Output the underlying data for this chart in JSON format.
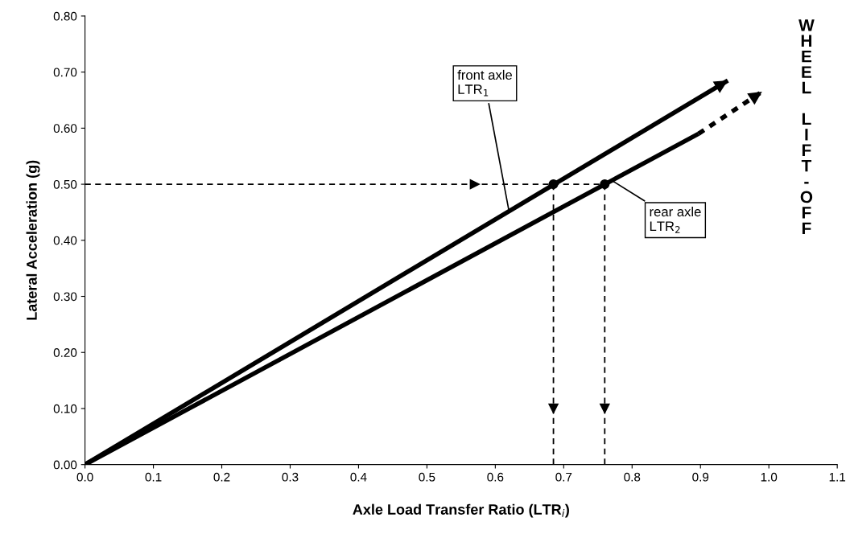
{
  "chart_data": {
    "type": "line",
    "xlabel": "Axle Load Transfer Ratio (LTR$_{i}$)",
    "ylabel": "Lateral Acceleration (g)",
    "series": [
      {
        "color": "#000000",
        "line_style": "solid",
        "x": [
          0,
          0.94
        ],
        "values": [
          0,
          0.685
        ]
      },
      {
        "color": "#000000",
        "line_style": "solid",
        "x": [
          0,
          0.897
        ],
        "values": [
          0,
          0.59
        ]
      },
      {
        "color": "#000000",
        "line_style": "dotted",
        "x": [
          0.897,
          0.99
        ],
        "values": [
          0.59,
          0.665
        ]
      },
      {
        "color": "#000000",
        "line_style": "dashed",
        "x": [
          0,
          0.57,
          0.76
        ],
        "values": [
          0.5,
          0.5,
          0.5
        ]
      },
      {
        "color": "#000000",
        "line_style": "dashed",
        "x": [
          0.685,
          0.685,
          0.685
        ],
        "values": [
          0.5,
          0.1,
          0
        ]
      },
      {
        "color": "#000000",
        "line_style": "dashed",
        "x": [
          0.76,
          0.76,
          0.76
        ],
        "values": [
          0.5,
          0.1,
          0
        ]
      },
      {
        "type": "scatter",
        "color": "#000000",
        "marker": "circle",
        "x": [
          0.685,
          0.76
        ],
        "values": [
          0.5,
          0.5
        ]
      }
    ],
    "annotations": [
      {
        "text": "front axle\nLTR$_{1}$",
        "x": 0.62,
        "y": 0.452
      },
      {
        "text": "rear axle\nLTR$_{2}$",
        "x": 0.77,
        "y": 0.507
      },
      "WHEEL LIFT-OFF"
    ],
    "xlim": [
      0,
      1.1
    ],
    "xticks": [
      {
        "value": 0,
        "label": "0.0"
      },
      0.1,
      0.2,
      0.3,
      0.4,
      0.5,
      0.6,
      0.7,
      0.8,
      0.9,
      {
        "value": 1,
        "label": "1.0"
      },
      1.1
    ],
    "ylim": [
      0,
      0.8
    ],
    "yticks": [
      {
        "value": 0,
        "label": "0.00"
      },
      {
        "value": 0.1,
        "label": "0.10"
      },
      {
        "value": 0.2,
        "label": "0.20"
      },
      {
        "value": 0.3,
        "label": "0.30"
      },
      {
        "value": 0.4,
        "label": "0.40"
      },
      {
        "value": 0.5,
        "label": "0.50"
      },
      {
        "value": 0.6,
        "label": "0.60"
      },
      {
        "value": 0.7,
        "label": "0.70"
      },
      {
        "value": 0.8,
        "label": "0.80"
      }
    ],
    "grid": false
  }
}
